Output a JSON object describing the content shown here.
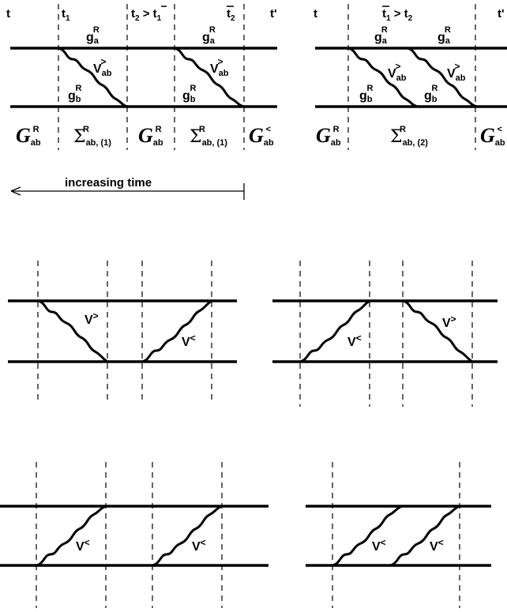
{
  "top_left": {
    "time_labels": [
      "t",
      "t",
      "1",
      "t",
      "2",
      " > ",
      "t",
      "1",
      "t",
      "2",
      "t'"
    ],
    "g_a": "g",
    "g_a_sub": "a",
    "g_sup": "R",
    "g_b": "g",
    "g_b_sub": "b",
    "v": "V",
    "v_sub": "ab",
    "v_sup": ">",
    "G": "G",
    "G_sub": "ab",
    "G_sup_R": "R",
    "G_sup_lt": "<",
    "sigma": "Σ",
    "sigma_sub1": "ab, (1)",
    "sigma_sup": "R"
  },
  "top_right": {
    "t_left": "t",
    "t_mid": "t",
    "t_mid_sub": "1",
    "gt": " > t",
    "t_mid2_sub": "2",
    "t_right": "t'",
    "sigma_sub2": "ab, (2)"
  },
  "arrow": {
    "label": "increasing time"
  },
  "middle": {
    "v_gt": "V",
    "v_gt_sup": ">",
    "v_lt": "V",
    "v_lt_sup": "<"
  },
  "bottom": {
    "v_lt": "V",
    "v_lt_sup": "<"
  }
}
